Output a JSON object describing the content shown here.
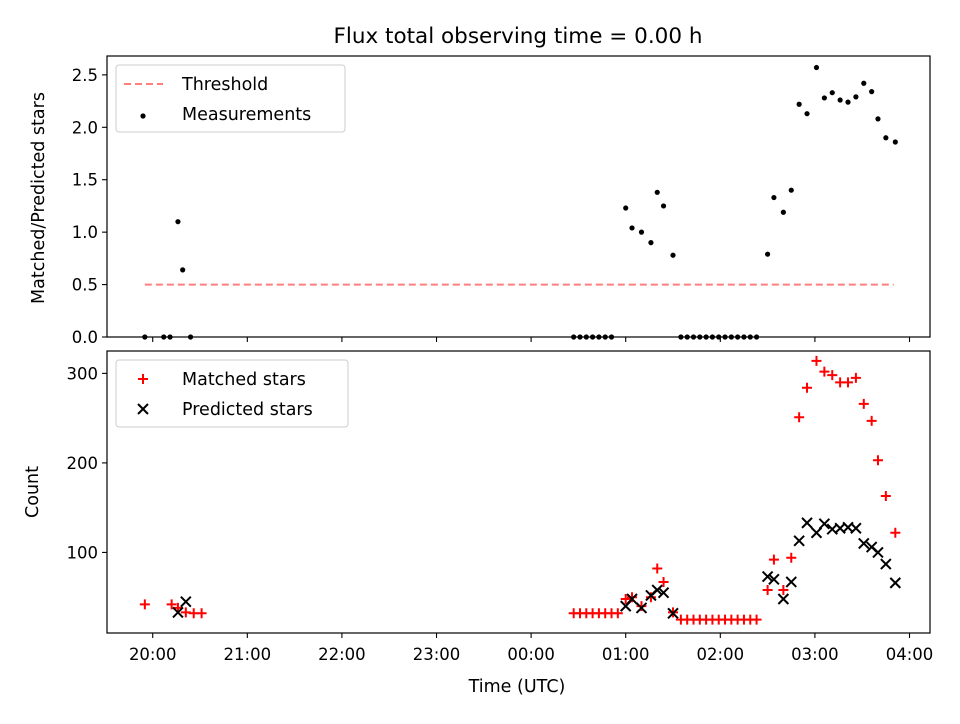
{
  "chart_data": [
    {
      "type": "scatter",
      "title": "Flux total observing time = 0.00 h",
      "xlabel": "",
      "ylabel": "Matched/Predicted stars",
      "xlim": [
        "19:31",
        "04:13"
      ],
      "ylim": [
        0,
        2.68
      ],
      "xticks": [
        "20:00",
        "21:00",
        "22:00",
        "23:00",
        "00:00",
        "01:00",
        "02:00",
        "03:00",
        "04:00"
      ],
      "yticks": [
        "0.0",
        "0.5",
        "1.0",
        "1.5",
        "2.0",
        "2.5"
      ],
      "legend": {
        "position": "top-left",
        "entries": [
          "Threshold",
          "Measurements"
        ]
      },
      "series": [
        {
          "name": "Threshold",
          "style": "dashed-line",
          "color": "#ff7f7f",
          "points": [
            [
              "19:55",
              0.5
            ],
            [
              "03:50",
              0.5
            ]
          ]
        },
        {
          "name": "Measurements",
          "style": "dot",
          "color": "#000000",
          "points": [
            [
              "19:55",
              0.0
            ],
            [
              "20:07",
              0.0
            ],
            [
              "20:11",
              0.0
            ],
            [
              "20:16",
              1.1
            ],
            [
              "20:19",
              0.64
            ],
            [
              "20:24",
              0.0
            ],
            [
              "00:27",
              0.0
            ],
            [
              "00:31",
              0.0
            ],
            [
              "00:35",
              0.0
            ],
            [
              "00:39",
              0.0
            ],
            [
              "00:43",
              0.0
            ],
            [
              "00:47",
              0.0
            ],
            [
              "00:51",
              0.0
            ],
            [
              "01:00",
              1.23
            ],
            [
              "01:04",
              1.04
            ],
            [
              "01:10",
              1.0
            ],
            [
              "01:16",
              0.9
            ],
            [
              "01:20",
              1.38
            ],
            [
              "01:24",
              1.25
            ],
            [
              "01:30",
              0.78
            ],
            [
              "01:35",
              0.0
            ],
            [
              "01:39",
              0.0
            ],
            [
              "01:43",
              0.0
            ],
            [
              "01:47",
              0.0
            ],
            [
              "01:51",
              0.0
            ],
            [
              "01:55",
              0.0
            ],
            [
              "01:59",
              0.0
            ],
            [
              "02:03",
              0.0
            ],
            [
              "02:07",
              0.0
            ],
            [
              "02:11",
              0.0
            ],
            [
              "02:15",
              0.0
            ],
            [
              "02:19",
              0.0
            ],
            [
              "02:23",
              0.0
            ],
            [
              "02:30",
              0.79
            ],
            [
              "02:34",
              1.33
            ],
            [
              "02:40",
              1.19
            ],
            [
              "02:45",
              1.4
            ],
            [
              "02:50",
              2.22
            ],
            [
              "02:55",
              2.13
            ],
            [
              "03:01",
              2.57
            ],
            [
              "03:06",
              2.28
            ],
            [
              "03:11",
              2.33
            ],
            [
              "03:16",
              2.26
            ],
            [
              "03:21",
              2.24
            ],
            [
              "03:26",
              2.29
            ],
            [
              "03:31",
              2.42
            ],
            [
              "03:36",
              2.34
            ],
            [
              "03:40",
              2.08
            ],
            [
              "03:45",
              1.9
            ],
            [
              "03:51",
              1.86
            ]
          ]
        }
      ]
    },
    {
      "type": "scatter",
      "title": "",
      "xlabel": "Time (UTC)",
      "ylabel": "Count",
      "xlim": [
        "19:31",
        "04:13"
      ],
      "ylim": [
        10,
        325
      ],
      "xticks": [
        "20:00",
        "21:00",
        "22:00",
        "23:00",
        "00:00",
        "01:00",
        "02:00",
        "03:00",
        "04:00"
      ],
      "yticks": [
        "100",
        "200",
        "300"
      ],
      "legend": {
        "position": "top-left",
        "entries": [
          "Matched stars",
          "Predicted stars"
        ]
      },
      "series": [
        {
          "name": "Matched stars",
          "style": "plus",
          "color": "#ff0000",
          "points": [
            [
              "19:55",
              42
            ],
            [
              "20:12",
              42
            ],
            [
              "20:16",
              38
            ],
            [
              "20:21",
              33
            ],
            [
              "20:26",
              32
            ],
            [
              "20:31",
              32
            ],
            [
              "00:27",
              32
            ],
            [
              "00:31",
              32
            ],
            [
              "00:35",
              32
            ],
            [
              "00:39",
              32
            ],
            [
              "00:43",
              32
            ],
            [
              "00:47",
              32
            ],
            [
              "00:51",
              32
            ],
            [
              "00:55",
              32
            ],
            [
              "01:00",
              48
            ],
            [
              "01:04",
              50
            ],
            [
              "01:10",
              40
            ],
            [
              "01:16",
              50
            ],
            [
              "01:20",
              82
            ],
            [
              "01:24",
              67
            ],
            [
              "01:30",
              33
            ],
            [
              "01:35",
              25
            ],
            [
              "01:39",
              25
            ],
            [
              "01:43",
              25
            ],
            [
              "01:47",
              25
            ],
            [
              "01:51",
              25
            ],
            [
              "01:55",
              25
            ],
            [
              "01:59",
              25
            ],
            [
              "02:03",
              25
            ],
            [
              "02:07",
              25
            ],
            [
              "02:11",
              25
            ],
            [
              "02:15",
              25
            ],
            [
              "02:19",
              25
            ],
            [
              "02:23",
              25
            ],
            [
              "02:30",
              58
            ],
            [
              "02:34",
              92
            ],
            [
              "02:40",
              58
            ],
            [
              "02:45",
              94
            ],
            [
              "02:50",
              251
            ],
            [
              "02:55",
              284
            ],
            [
              "03:01",
              314
            ],
            [
              "03:06",
              302
            ],
            [
              "03:11",
              298
            ],
            [
              "03:16",
              290
            ],
            [
              "03:21",
              290
            ],
            [
              "03:26",
              295
            ],
            [
              "03:31",
              266
            ],
            [
              "03:36",
              247
            ],
            [
              "03:40",
              203
            ],
            [
              "03:45",
              163
            ],
            [
              "03:51",
              122
            ]
          ]
        },
        {
          "name": "Predicted stars",
          "style": "x",
          "color": "#000000",
          "points": [
            [
              "20:16",
              33
            ],
            [
              "20:21",
              45
            ],
            [
              "01:00",
              40
            ],
            [
              "01:04",
              48
            ],
            [
              "01:10",
              38
            ],
            [
              "01:16",
              52
            ],
            [
              "01:20",
              58
            ],
            [
              "01:24",
              55
            ],
            [
              "01:30",
              32
            ],
            [
              "02:30",
              73
            ],
            [
              "02:34",
              70
            ],
            [
              "02:40",
              48
            ],
            [
              "02:45",
              67
            ],
            [
              "02:50",
              113
            ],
            [
              "02:55",
              133
            ],
            [
              "03:01",
              122
            ],
            [
              "03:06",
              132
            ],
            [
              "03:11",
              126
            ],
            [
              "03:16",
              127
            ],
            [
              "03:21",
              128
            ],
            [
              "03:26",
              127
            ],
            [
              "03:31",
              110
            ],
            [
              "03:36",
              106
            ],
            [
              "03:40",
              100
            ],
            [
              "03:45",
              87
            ],
            [
              "03:51",
              66
            ]
          ]
        }
      ]
    }
  ]
}
